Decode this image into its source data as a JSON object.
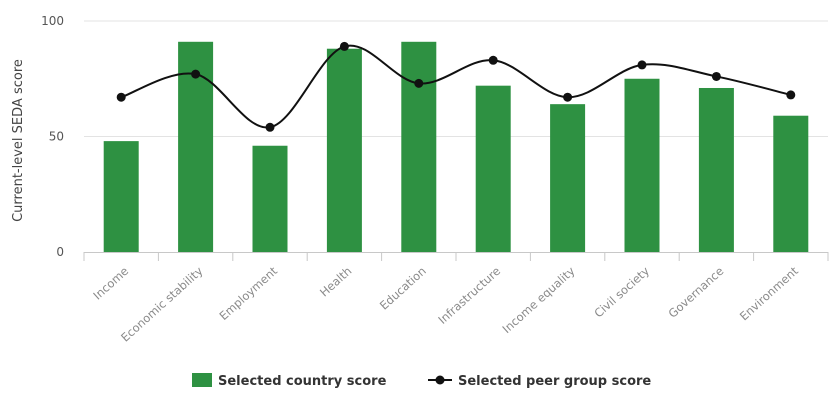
{
  "chart_data": {
    "type": "bar",
    "categories": [
      "Income",
      "Economic stability",
      "Employment",
      "Health",
      "Education",
      "Infrastructure",
      "Income equality",
      "Civil society",
      "Governance",
      "Environment"
    ],
    "series": [
      {
        "name": "Selected country score",
        "type": "bar",
        "color": "#2e9142",
        "values": [
          48,
          91,
          46,
          88,
          91,
          72,
          64,
          75,
          71,
          59
        ]
      },
      {
        "name": "Selected peer group score",
        "type": "line",
        "color": "#111111",
        "values": [
          67,
          77,
          54,
          89,
          73,
          83,
          67,
          81,
          76,
          68
        ]
      }
    ],
    "ylabel": "Current-level SEDA score",
    "xlabel": "",
    "ylim": [
      0,
      100
    ],
    "yticks": [
      0,
      50,
      100
    ],
    "grid": true,
    "legend": "bottom-center"
  }
}
